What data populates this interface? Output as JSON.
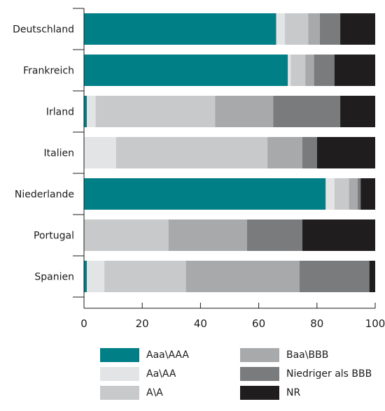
{
  "chart_data": {
    "type": "bar",
    "orientation": "horizontal",
    "stacked": true,
    "title": "",
    "xlabel": "",
    "ylabel": "",
    "xlim": [
      0,
      100
    ],
    "xticks": [
      "0",
      "20",
      "40",
      "60",
      "80",
      "100"
    ],
    "grid": false,
    "legend_position": "bottom",
    "categories": [
      "Deutschland",
      "Frankreich",
      "Irland",
      "Italien",
      "Niederlande",
      "Portugal",
      "Spanien"
    ],
    "series": [
      {
        "name": "Aaa\\AAA",
        "color": "#007F86",
        "values": [
          66,
          70,
          1,
          0,
          83,
          0,
          1
        ]
      },
      {
        "name": "Aa\\AA",
        "color": "#E3E4E5",
        "values": [
          3,
          1,
          3,
          11,
          3,
          0,
          6
        ]
      },
      {
        "name": "A\\A",
        "color": "#C8C9CA",
        "values": [
          8,
          5,
          41,
          52,
          5,
          29,
          28
        ]
      },
      {
        "name": "Baa\\BBB",
        "color": "#A8A9AB",
        "values": [
          4,
          3,
          20,
          12,
          3,
          27,
          39
        ]
      },
      {
        "name": "Niedriger als BBB",
        "color": "#7A7B7D",
        "values": [
          7,
          7,
          23,
          5,
          1,
          19,
          24
        ]
      },
      {
        "name": "NR",
        "color": "#1F1D1E",
        "values": [
          12,
          14,
          12,
          20,
          5,
          25,
          2
        ]
      }
    ]
  }
}
